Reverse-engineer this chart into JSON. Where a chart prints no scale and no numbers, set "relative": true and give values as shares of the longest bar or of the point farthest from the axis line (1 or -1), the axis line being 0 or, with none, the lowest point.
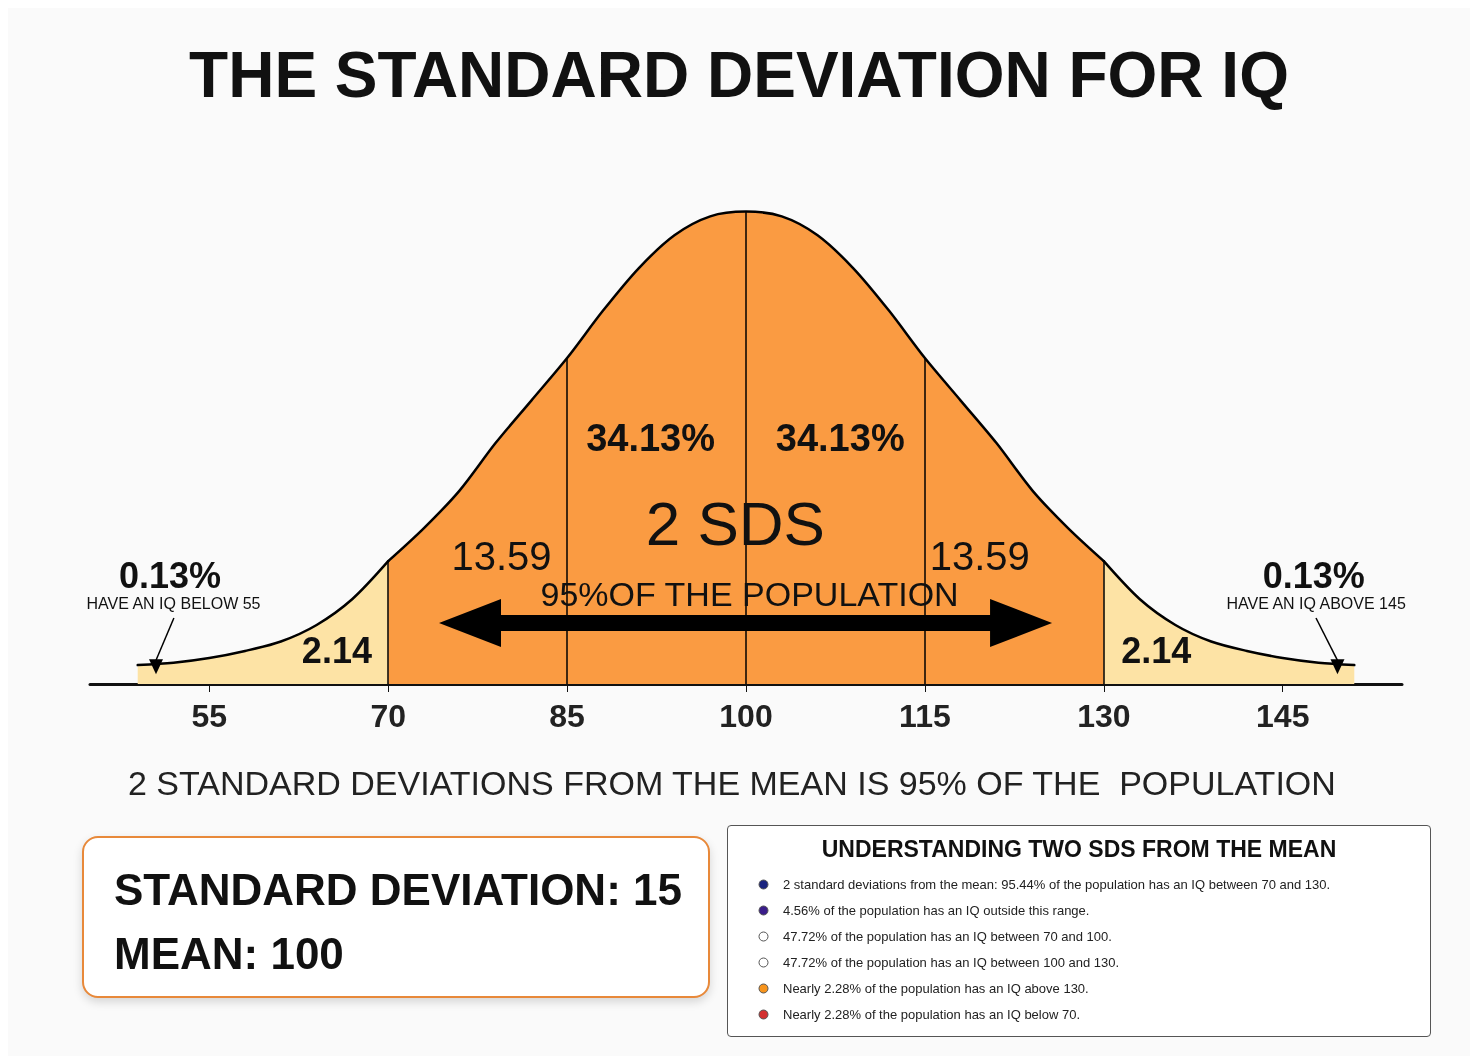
{
  "chart_data": {
    "type": "area",
    "title": "THE STANDARD DEVIATION FOR IQ",
    "relative": true,
    "marker": "none",
    "tick_labels": "x",
    "xlim": [
      45,
      155
    ],
    "xticks": [
      55,
      70,
      85,
      100,
      115,
      130,
      145
    ],
    "series": [
      {
        "color": "#fde3a5",
        "x": [
          49,
          52,
          55,
          58,
          61,
          64,
          67,
          70
        ],
        "values": [
          0.04,
          0.045,
          0.055,
          0.07,
          0.09,
          0.125,
          0.18,
          0.26
        ]
      },
      {
        "color": "#fa9b42",
        "x": [
          70,
          73,
          76,
          79,
          82,
          85,
          88,
          91,
          94,
          97,
          100,
          103,
          106,
          109,
          112,
          115,
          118,
          121,
          124,
          127,
          130
        ],
        "values": [
          0.26,
          0.33,
          0.41,
          0.51,
          0.6,
          0.69,
          0.79,
          0.88,
          0.95,
          0.99,
          1,
          0.99,
          0.95,
          0.88,
          0.79,
          0.69,
          0.6,
          0.51,
          0.41,
          0.33,
          0.26
        ]
      },
      {
        "color": "#fde3a5",
        "x": [
          130,
          133,
          136,
          139,
          142,
          145,
          148,
          151
        ],
        "values": [
          0.26,
          0.18,
          0.125,
          0.09,
          0.07,
          0.055,
          0.045,
          0.04
        ]
      }
    ],
    "ref_lines": [
      {
        "axis": "x",
        "value": 70,
        "color": "#000000"
      },
      {
        "axis": "x",
        "value": 85,
        "color": "#000000"
      },
      {
        "axis": "x",
        "value": 100,
        "color": "#000000"
      },
      {
        "axis": "x",
        "value": 115,
        "color": "#000000"
      },
      {
        "axis": "x",
        "value": 130,
        "color": "#000000"
      }
    ],
    "annotations": [
      "0.13%",
      "HAVE AN IQ BELOW 55",
      "2.14",
      "13.59",
      "34.13%",
      "2 SDS",
      "95%OF THE POPULATION",
      "34.13%",
      "13.59",
      "2.14",
      "0.13%",
      "HAVE AN IQ ABOVE 145",
      "2 STANDARD DEVIATIONS FROM THE MEAN IS 95% OF THE  POPULATION",
      "STANDARD DEVIATION: 15",
      "MEAN: 100",
      "UNDERSTANDING TWO SDS FROM THE MEAN",
      "2 standard deviations from the mean: 95.44% of the population has an IQ between 70 and 130.",
      "4.56% of the population has an IQ outside this range.",
      "47.72% of the population has an IQ between 70 and 100.",
      "47.72% of the population has an IQ between 100 and 130.",
      "Nearly 2.28% of the population has an IQ above 130.",
      "Nearly 2.28% of the population has an IQ below 70."
    ]
  }
}
